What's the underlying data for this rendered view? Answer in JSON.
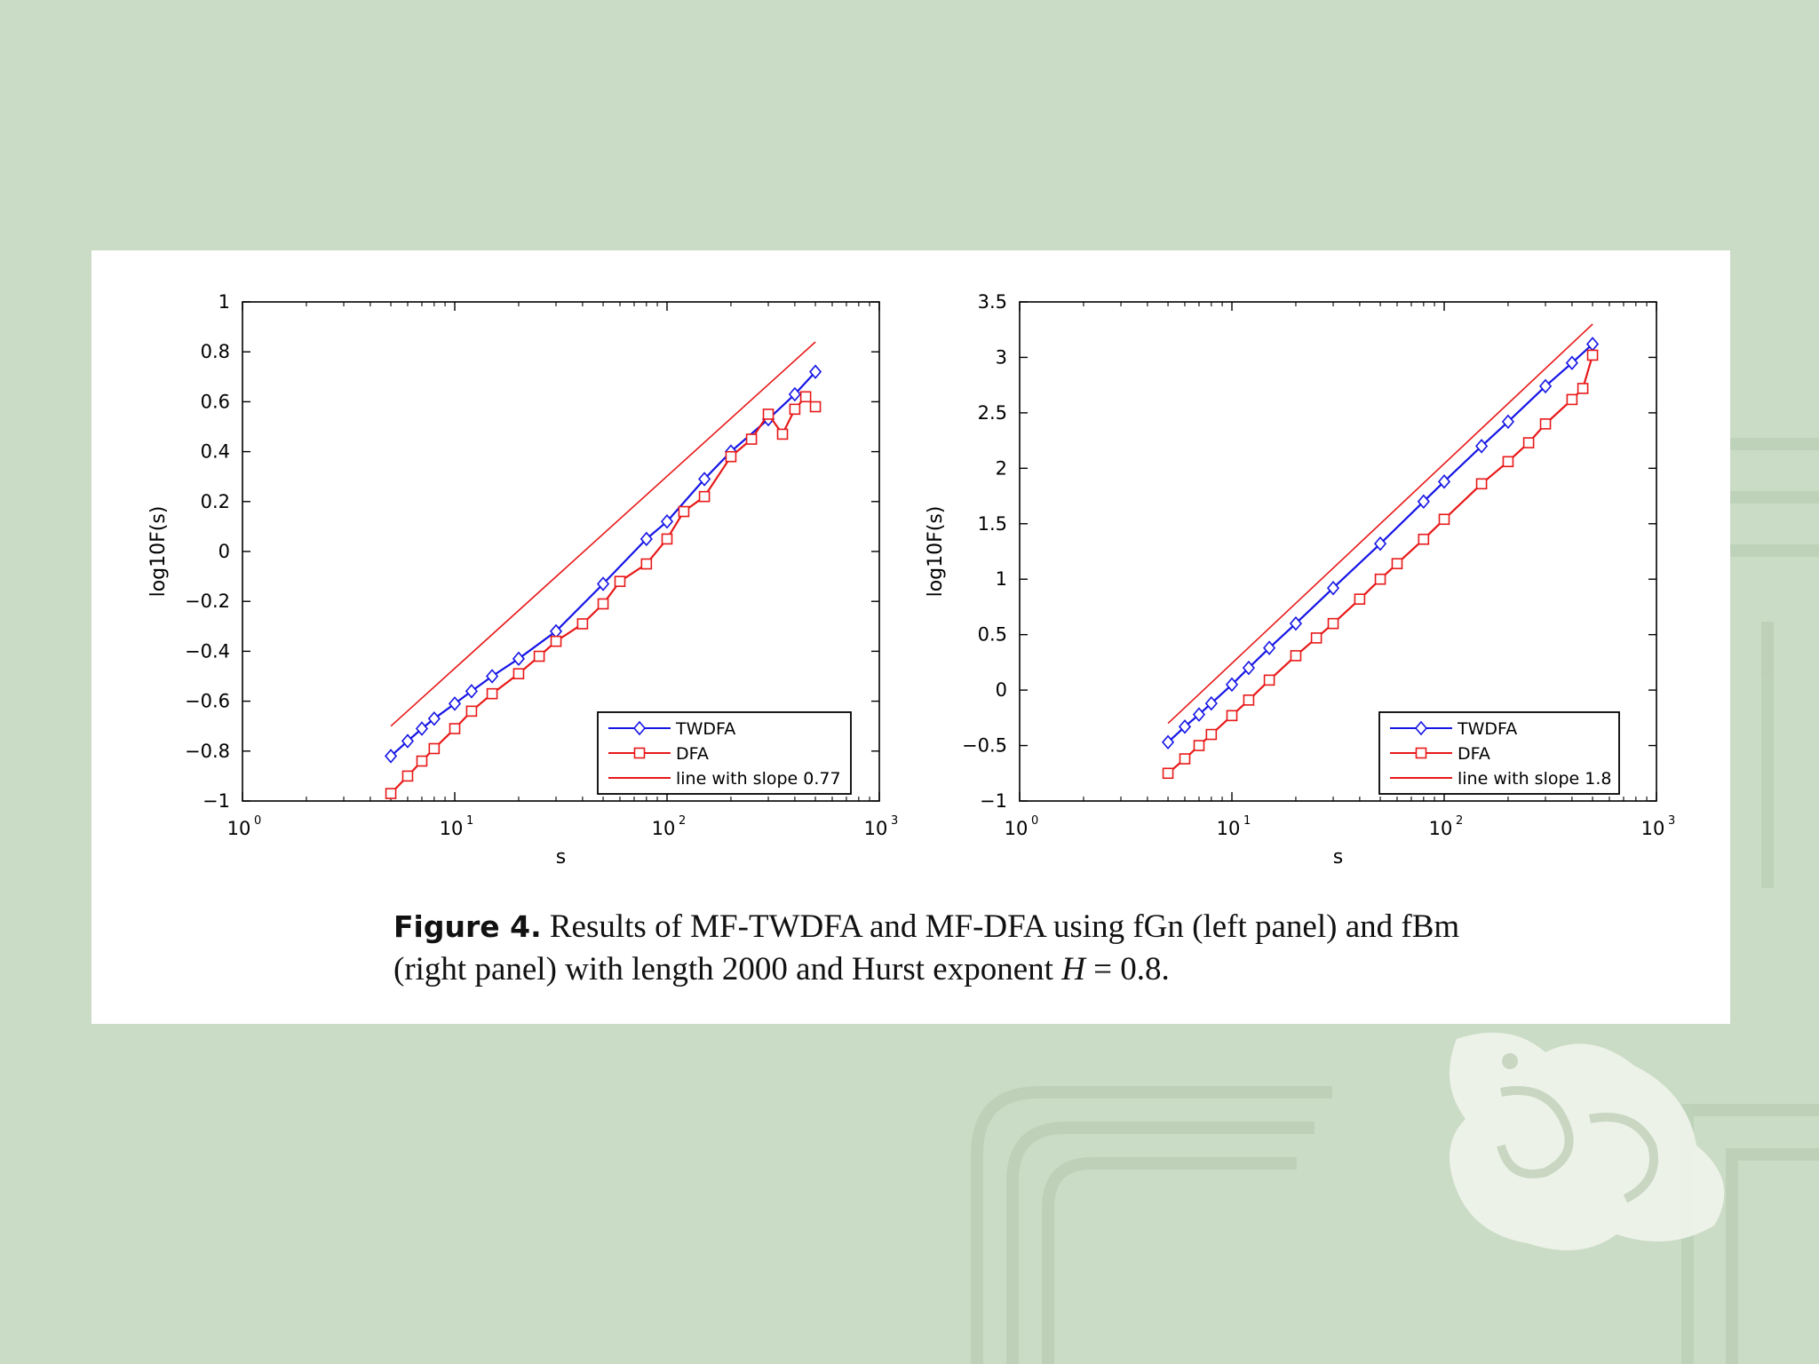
{
  "colors": {
    "background": "#cbdcc6",
    "twdfa": "#1515e6",
    "dfa": "#e81818",
    "line": "#e81818"
  },
  "caption": {
    "label": "Figure 4.",
    "text_line1": "Results of MF-TWDFA and MF-DFA using fGn (left panel) and fBm",
    "text_line2_a": "(right panel) with length 2000 and Hurst exponent ",
    "text_line2_sym": "H",
    "text_line2_b": " = 0.8."
  },
  "chart_data": [
    {
      "type": "line",
      "panel": "left panel",
      "xscale": "log",
      "xlim": [
        1,
        1000
      ],
      "ylim": [
        -1,
        1
      ],
      "xlabel": "s",
      "ylabel": "log10F(s)",
      "xticks": [
        {
          "base": "10",
          "exp": "0"
        },
        {
          "base": "10",
          "exp": "1"
        },
        {
          "base": "10",
          "exp": "2"
        },
        {
          "base": "10",
          "exp": "3"
        }
      ],
      "yticks": [
        "1",
        "0.8",
        "0.6",
        "0.4",
        "0.2",
        "0",
        "−0.2",
        "−0.4",
        "−0.6",
        "−0.8",
        "−1"
      ],
      "yticks_values": [
        1,
        0.8,
        0.6,
        0.4,
        0.2,
        0,
        -0.2,
        -0.4,
        -0.6,
        -0.8,
        -1
      ],
      "legend_position": "bottom-right",
      "series": [
        {
          "name": "TWDFA",
          "marker": "diamond",
          "x": [
            5,
            6,
            7,
            8,
            10,
            12,
            15,
            20,
            30,
            50,
            80,
            100,
            150,
            200,
            300,
            400,
            500
          ],
          "y": [
            -0.82,
            -0.76,
            -0.71,
            -0.67,
            -0.61,
            -0.56,
            -0.5,
            -0.43,
            -0.32,
            -0.13,
            0.05,
            0.12,
            0.29,
            0.4,
            0.53,
            0.63,
            0.72
          ]
        },
        {
          "name": "DFA",
          "marker": "square",
          "x": [
            5,
            6,
            7,
            8,
            10,
            12,
            15,
            20,
            25,
            30,
            40,
            50,
            60,
            80,
            100,
            120,
            150,
            200,
            250,
            300,
            350,
            400,
            450,
            500
          ],
          "y": [
            -0.97,
            -0.9,
            -0.84,
            -0.79,
            -0.71,
            -0.64,
            -0.57,
            -0.49,
            -0.42,
            -0.36,
            -0.29,
            -0.21,
            -0.12,
            -0.05,
            0.05,
            0.16,
            0.22,
            0.38,
            0.45,
            0.55,
            0.47,
            0.57,
            0.62,
            0.58
          ]
        },
        {
          "name": "line with slope 0.77",
          "marker": "none",
          "x": [
            5,
            500
          ],
          "y": [
            -0.7,
            0.84
          ]
        }
      ]
    },
    {
      "type": "line",
      "panel": "right panel",
      "xscale": "log",
      "xlim": [
        1,
        1000
      ],
      "ylim": [
        -1,
        3.5
      ],
      "xlabel": "s",
      "ylabel": "log10F(s)",
      "xticks": [
        {
          "base": "10",
          "exp": "0"
        },
        {
          "base": "10",
          "exp": "1"
        },
        {
          "base": "10",
          "exp": "2"
        },
        {
          "base": "10",
          "exp": "3"
        }
      ],
      "yticks": [
        "3.5",
        "3",
        "2.5",
        "2",
        "1.5",
        "1",
        "0.5",
        "0",
        "−0.5",
        "−1"
      ],
      "yticks_values": [
        3.5,
        3,
        2.5,
        2,
        1.5,
        1,
        0.5,
        0,
        -0.5,
        -1
      ],
      "legend_position": "bottom-right",
      "series": [
        {
          "name": "TWDFA",
          "marker": "diamond",
          "x": [
            5,
            6,
            7,
            8,
            10,
            12,
            15,
            20,
            30,
            50,
            80,
            100,
            150,
            200,
            300,
            400,
            500
          ],
          "y": [
            -0.47,
            -0.33,
            -0.22,
            -0.12,
            0.05,
            0.2,
            0.38,
            0.6,
            0.92,
            1.32,
            1.7,
            1.88,
            2.2,
            2.42,
            2.74,
            2.95,
            3.12
          ]
        },
        {
          "name": "DFA",
          "marker": "square",
          "x": [
            5,
            6,
            7,
            8,
            10,
            12,
            15,
            20,
            25,
            30,
            40,
            50,
            60,
            80,
            100,
            150,
            200,
            250,
            300,
            400,
            450,
            500
          ],
          "y": [
            -0.75,
            -0.62,
            -0.5,
            -0.4,
            -0.23,
            -0.09,
            0.09,
            0.31,
            0.47,
            0.6,
            0.82,
            1.0,
            1.14,
            1.36,
            1.54,
            1.86,
            2.06,
            2.23,
            2.4,
            2.62,
            2.72,
            3.02
          ]
        },
        {
          "name": "line with slope 1.8",
          "marker": "none",
          "x": [
            5,
            500
          ],
          "y": [
            -0.3,
            3.3
          ]
        }
      ]
    }
  ]
}
